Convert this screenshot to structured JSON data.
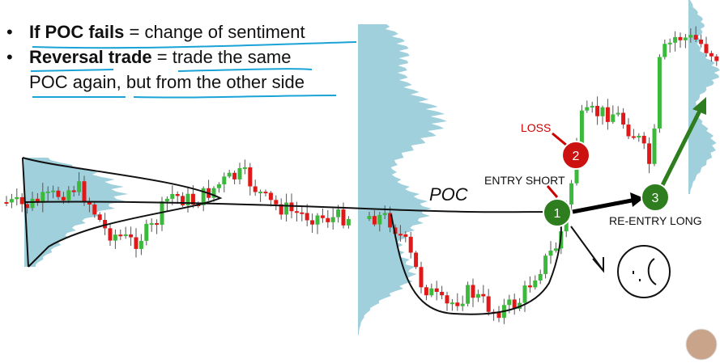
{
  "bullets": [
    {
      "bold": "If POC fails",
      "text": "= change of sentiment"
    },
    {
      "bold": "Reversal trade",
      "text": "= trade the same POC again, but from the other side"
    }
  ],
  "annotations": {
    "poc": "POC",
    "loss": "LOSS",
    "entry_short": "ENTRY SHORT",
    "re_entry_long": "RE-ENTRY LONG"
  },
  "markers": [
    "1",
    "2",
    "3"
  ]
}
